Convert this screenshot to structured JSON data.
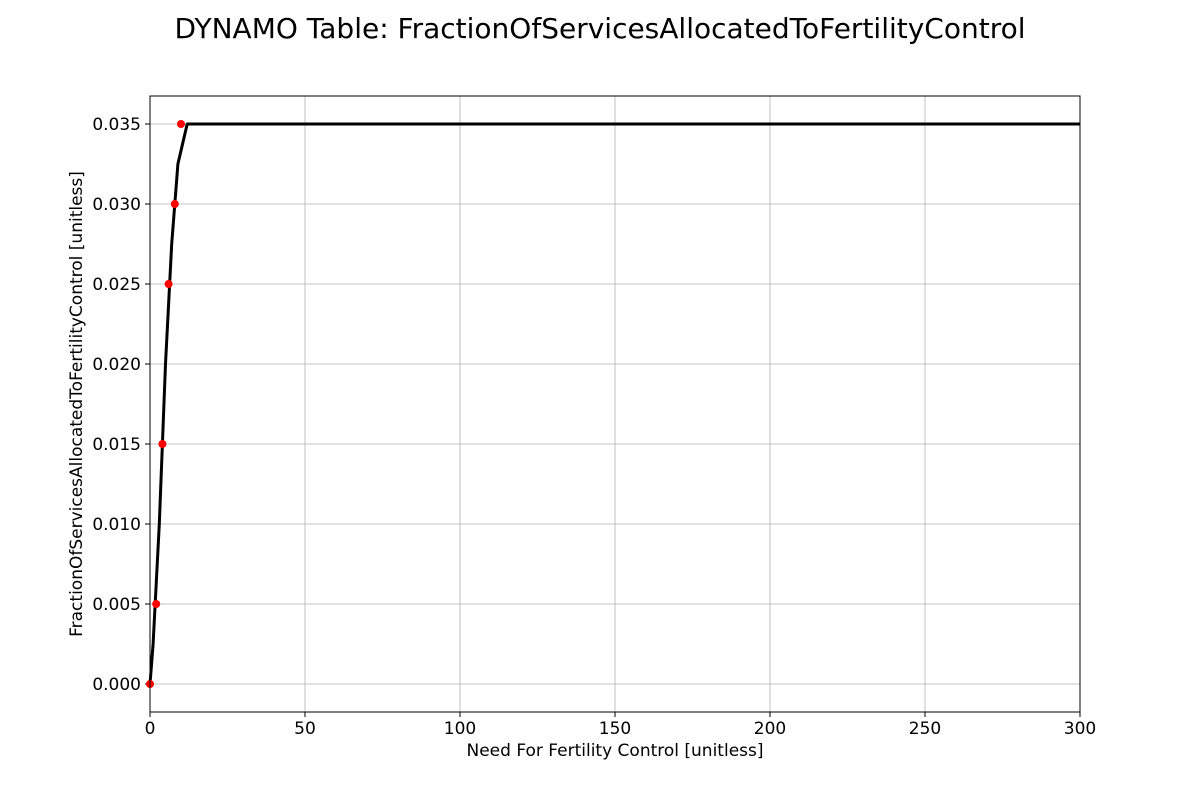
{
  "chart_data": {
    "type": "line",
    "title": "DYNAMO Table: FractionOfServicesAllocatedToFertilityControl",
    "xlabel": "Need For Fertility Control [unitless]",
    "ylabel": "FractionOfServicesAllocatedToFertilityControl [unitless]",
    "xlim": [
      0,
      300
    ],
    "ylim": [
      -0.00175,
      0.03675
    ],
    "x_ticks": [
      0,
      50,
      100,
      150,
      200,
      250,
      300
    ],
    "x_tick_labels": [
      "0",
      "50",
      "100",
      "150",
      "200",
      "250",
      "300"
    ],
    "y_ticks": [
      0.0,
      0.005,
      0.01,
      0.015,
      0.02,
      0.025,
      0.03,
      0.035
    ],
    "y_tick_labels": [
      "0.000",
      "0.005",
      "0.010",
      "0.015",
      "0.020",
      "0.025",
      "0.030",
      "0.035"
    ],
    "grid": true,
    "series": [
      {
        "style": "line",
        "color": "#000000",
        "x": [
          0,
          1,
          3,
          5,
          7,
          9,
          12,
          300
        ],
        "y": [
          0.0,
          0.0025,
          0.01,
          0.02,
          0.0275,
          0.0325,
          0.035,
          0.035
        ]
      },
      {
        "style": "points",
        "color": "#ff0000",
        "x": [
          0,
          2,
          4,
          6,
          8,
          10
        ],
        "y": [
          0.0,
          0.005,
          0.015,
          0.025,
          0.03,
          0.035
        ]
      }
    ]
  }
}
